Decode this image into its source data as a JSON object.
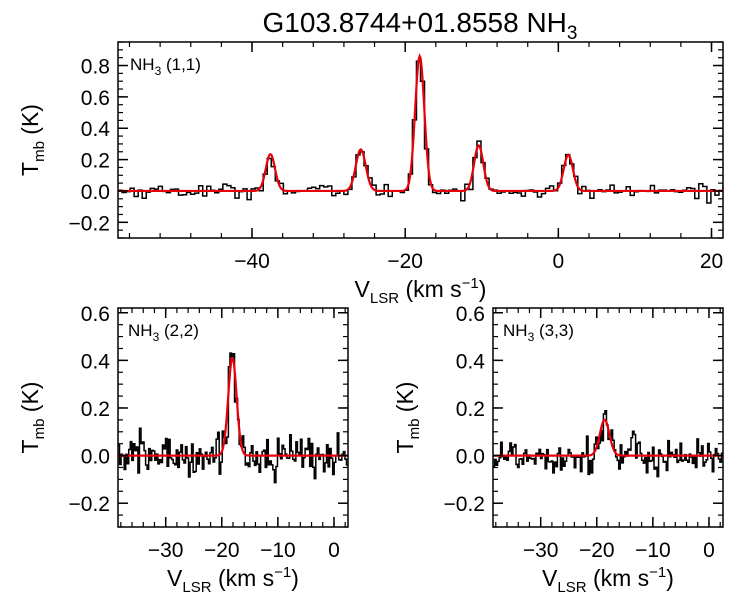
{
  "figure_title": {
    "main": "G103.8744+01.8558 NH",
    "sub": "3"
  },
  "chart_data": [
    {
      "type": "line",
      "panel": "nh3-11",
      "label": {
        "main": "NH",
        "sub": "3",
        "rest": " (1,1)"
      },
      "xlim": [
        -57.5,
        21.5
      ],
      "ylim": [
        -0.3,
        0.95
      ],
      "xticks": [
        -40,
        -20,
        0,
        20
      ],
      "xtick_labels": [
        "−40",
        "−20",
        "0",
        "20"
      ],
      "yticks": [
        -0.2,
        0.0,
        0.2,
        0.4,
        0.6,
        0.8
      ],
      "ytick_labels": [
        "−0.2",
        "0.0",
        "0.2",
        "0.4",
        "0.6",
        "0.8"
      ],
      "ylabel": {
        "main": "T",
        "sub": "mb",
        "rest": " (K)"
      },
      "xlabel": {
        "main": "V",
        "sub": "LSR",
        "rest": " (km s",
        "sup": "−1",
        "end": ")"
      },
      "spectrum_x_range": [
        -57.5,
        21.5
      ],
      "noise_rms": 0.022,
      "fit_components": [
        {
          "center": -37.6,
          "amplitude": 0.235,
          "sigma": 0.6
        },
        {
          "center": -25.8,
          "amplitude": 0.265,
          "sigma": 0.65
        },
        {
          "center": -18.1,
          "amplitude": 0.86,
          "sigma": 0.6
        },
        {
          "center": -10.4,
          "amplitude": 0.29,
          "sigma": 0.6
        },
        {
          "center": 1.3,
          "amplitude": 0.23,
          "sigma": 0.6
        }
      ],
      "series": [
        {
          "name": "observed spectrum",
          "style": "step",
          "color": "#000000"
        },
        {
          "name": "gaussian fit",
          "style": "line",
          "color": "#e8000b"
        }
      ]
    },
    {
      "type": "line",
      "panel": "nh3-22",
      "label": {
        "main": "NH",
        "sub": "3",
        "rest": " (2,2)"
      },
      "xlim": [
        -38.5,
        2.5
      ],
      "ylim": [
        -0.3,
        0.62
      ],
      "xticks": [
        -30,
        -20,
        -10,
        0
      ],
      "xtick_labels": [
        "−30",
        "−20",
        "−10",
        "0"
      ],
      "yticks": [
        -0.2,
        0.0,
        0.2,
        0.4,
        0.6
      ],
      "ytick_labels": [
        "−0.2",
        "0.0",
        "0.2",
        "0.4",
        "0.6"
      ],
      "ylabel": {
        "main": "T",
        "sub": "mb",
        "rest": " (K)"
      },
      "xlabel": {
        "main": "V",
        "sub": "LSR",
        "rest": " (km s",
        "sup": "−1",
        "end": ")"
      },
      "spectrum_x_range": [
        -38.5,
        2.5
      ],
      "noise_rms": 0.045,
      "fit_components": [
        {
          "center": -18.1,
          "amplitude": 0.41,
          "sigma": 0.75
        }
      ],
      "series": [
        {
          "name": "observed spectrum",
          "style": "step",
          "color": "#000000"
        },
        {
          "name": "gaussian fit",
          "style": "line",
          "color": "#e8000b"
        }
      ]
    },
    {
      "type": "line",
      "panel": "nh3-33",
      "label": {
        "main": "NH",
        "sub": "3",
        "rest": " (3,3)"
      },
      "xlim": [
        -38.5,
        2.5
      ],
      "ylim": [
        -0.3,
        0.62
      ],
      "xticks": [
        -30,
        -20,
        -10,
        0
      ],
      "xtick_labels": [
        "−30",
        "−20",
        "−10",
        "0"
      ],
      "yticks": [
        -0.2,
        0.0,
        0.2,
        0.4,
        0.6
      ],
      "ytick_labels": [
        "−0.2",
        "0.0",
        "0.2",
        "0.4",
        "0.6"
      ],
      "ylabel": {
        "main": "T",
        "sub": "mb",
        "rest": " (K)"
      },
      "xlabel": {
        "main": "V",
        "sub": "LSR",
        "rest": " (km s",
        "sup": "−1",
        "end": ")"
      },
      "spectrum_x_range": [
        -38.5,
        2.5
      ],
      "noise_rms": 0.04,
      "fit_components": [
        {
          "center": -18.6,
          "amplitude": 0.15,
          "sigma": 0.85
        }
      ],
      "series": [
        {
          "name": "observed spectrum",
          "style": "step",
          "color": "#000000"
        },
        {
          "name": "gaussian fit",
          "style": "line",
          "color": "#e8000b"
        }
      ]
    }
  ]
}
